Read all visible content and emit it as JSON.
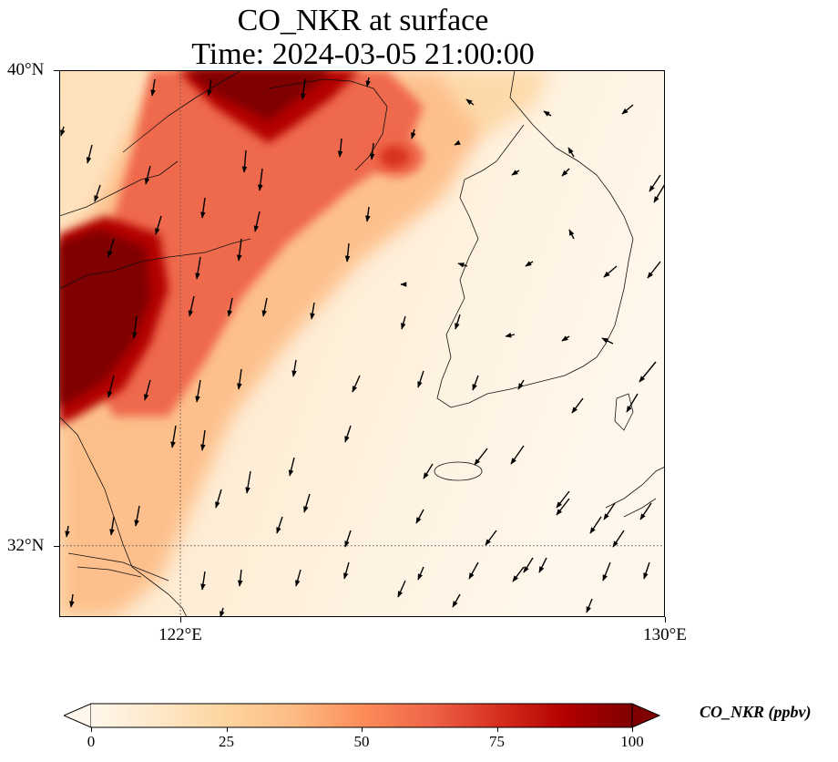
{
  "title": {
    "line1": "CO_NKR at surface",
    "line2": "Time: 2024-03-05 21:00:00"
  },
  "map": {
    "lat_range": [
      30.8,
      40.0
    ],
    "lon_range": [
      120.0,
      130.0
    ],
    "gridlines": {
      "lat": [
        32
      ],
      "lon": [
        122
      ],
      "style": "dotted"
    },
    "lat_ticks": [
      {
        "value": 40,
        "label": "40°N"
      },
      {
        "value": 32,
        "label": "32°N"
      }
    ],
    "lon_ticks": [
      {
        "value": 122,
        "label": "122°E"
      },
      {
        "value": 130,
        "label": "130°E"
      }
    ],
    "field": "CO_NKR concentration shaded (high in north-west plume, low over Korea and sea)",
    "vectors": "wind vectors, predominantly from north-northeast"
  },
  "colorbar": {
    "label": "CO_NKR (ppbv)",
    "ticks": [
      0,
      25,
      50,
      75,
      100
    ],
    "range": [
      0,
      100
    ],
    "extend": "both",
    "colormap": [
      "#fff7ec",
      "#fee8c8",
      "#fdd49e",
      "#fdbb84",
      "#fc8d59",
      "#ef6548",
      "#d7301f",
      "#b30000",
      "#7f0000"
    ]
  }
}
